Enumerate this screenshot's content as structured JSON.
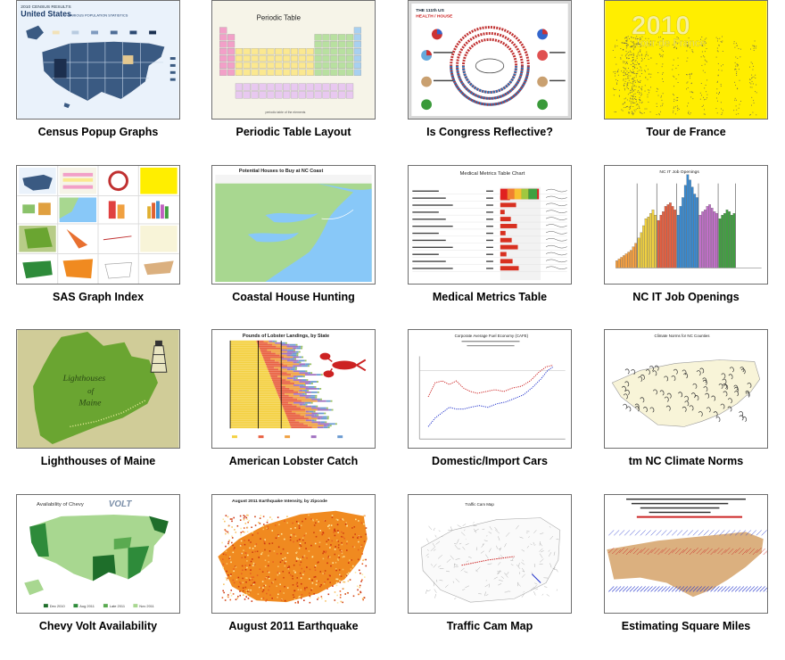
{
  "gallery": {
    "items": [
      {
        "caption": "Census Popup Graphs",
        "thumb_text": [
          "2010 CENSUS RESULTS",
          "United States",
          "VARIOUS POPULATION STATISTICS"
        ]
      },
      {
        "caption": "Periodic Table Layout",
        "thumb_text": [
          "Periodic Table"
        ]
      },
      {
        "caption": "Is Congress Reflective?",
        "thumb_text": [
          "THE 111th US",
          "HEALTH / HOUSE"
        ]
      },
      {
        "caption": "Tour de France",
        "thumb_text": [
          "2010",
          "Tour de France"
        ]
      },
      {
        "caption": "SAS Graph Index",
        "thumb_text": []
      },
      {
        "caption": "Coastal House Hunting",
        "thumb_text": [
          "Potential Houses to Buy at NC Coast"
        ]
      },
      {
        "caption": "Medical Metrics Table",
        "thumb_text": [
          "Medical Metrics Table Chart"
        ]
      },
      {
        "caption": "NC IT Job Openings",
        "thumb_text": [
          "NC IT Job Openings"
        ]
      },
      {
        "caption": "Lighthouses of Maine",
        "thumb_text": [
          "Lighthouses",
          "of",
          "Maine"
        ]
      },
      {
        "caption": "American Lobster Catch",
        "thumb_text": [
          "Pounds of Lobster Landings, by State"
        ]
      },
      {
        "caption": "Domestic/Import Cars",
        "thumb_text": [
          "Corporate Average Fuel Economy (CAFE)"
        ]
      },
      {
        "caption": "tm NC Climate Norms",
        "thumb_text": [
          "Climate Norms for NC Counties"
        ]
      },
      {
        "caption": "Chevy Volt Availability",
        "thumb_text": [
          "Availability of Chevy",
          "VOLT"
        ],
        "legend": [
          "Dec 2010",
          "Aug 2011",
          "Late 2011",
          "Nov 2011"
        ]
      },
      {
        "caption": "August 2011 Earthquake",
        "thumb_text": [
          "August 2011 Earthquake Intensity, by Zipcode"
        ]
      },
      {
        "caption": "Traffic Cam Map",
        "thumb_text": [
          "Traffic Cam Map"
        ]
      },
      {
        "caption": "Estimating Square Miles",
        "thumb_text": []
      }
    ]
  },
  "colors": {
    "border": "#6e6e6e",
    "census_blue": "#3a5a82",
    "periodic_pink": "#f2a0c8",
    "tour_yellow": "#ffee00",
    "map_green": "#a8d790",
    "sea_blue": "#88c8f8",
    "maine_green": "#6aa531",
    "lobster_red": "#cc2222",
    "volt_green": "#2e8b3a",
    "quake_orange": "#f08a20",
    "nc_tan": "#dbb07f"
  }
}
